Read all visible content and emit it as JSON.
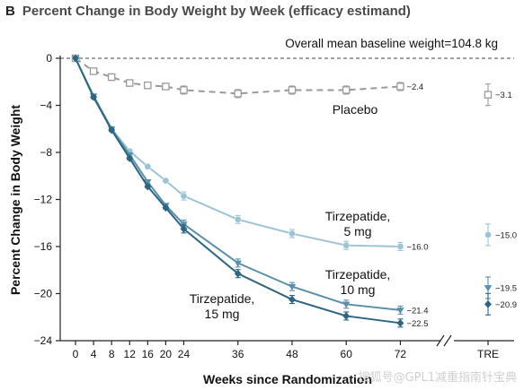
{
  "panel": {
    "letter": "B",
    "title": "Percent Change in Body Weight by Week (efficacy estimand)"
  },
  "watermark": "搜狐号@GPL1减重指南针宝典",
  "chart_data": {
    "type": "line",
    "title": "Percent Change in Body Weight by Week (efficacy estimand)",
    "xlabel": "Weeks since Randomization",
    "ylabel": "Percent Change in Body Weight",
    "ylim": [
      -24,
      0
    ],
    "yticks": [
      0,
      -4,
      -8,
      -12,
      -16,
      -20,
      -24
    ],
    "xticks": [
      0,
      4,
      8,
      12,
      16,
      20,
      24,
      36,
      48,
      60,
      72
    ],
    "extra_xtick": "TRE",
    "x": [
      0,
      4,
      8,
      12,
      16,
      20,
      24,
      36,
      48,
      60,
      72
    ],
    "grid": false,
    "annotation": "Overall mean baseline weight=104.8 kg",
    "series": [
      {
        "name": "Placebo",
        "label_lines": [
          "Placebo"
        ],
        "color": "#9a9a9a",
        "dashed": true,
        "marker": "square-open",
        "values": [
          0,
          -1.1,
          -1.6,
          -2.1,
          -2.3,
          -2.4,
          -2.7,
          -3.0,
          -2.7,
          -2.7,
          -2.4
        ],
        "end_label": "−2.4",
        "tre": -3.1,
        "tre_label": "−3.1"
      },
      {
        "name": "Tirzepatide, 5 mg",
        "label_lines": [
          "Tirzepatide,",
          "5 mg"
        ],
        "color": "#9cc3d5",
        "dashed": false,
        "marker": "circle",
        "values": [
          0,
          -3.3,
          -6.0,
          -7.9,
          -9.2,
          -10.4,
          -11.7,
          -13.7,
          -14.9,
          -15.9,
          -16.0
        ],
        "end_label": "−16.0",
        "tre": -15.0,
        "tre_label": "−15.0"
      },
      {
        "name": "Tirzepatide, 10 mg",
        "label_lines": [
          "Tirzepatide,",
          "10 mg"
        ],
        "color": "#5b8faa",
        "dashed": false,
        "marker": "triangle-down",
        "values": [
          0,
          -3.2,
          -6.0,
          -8.2,
          -10.5,
          -12.5,
          -14.1,
          -17.4,
          -19.4,
          -20.9,
          -21.4
        ],
        "end_label": "−21.4",
        "tre": -19.5,
        "tre_label": "−19.5"
      },
      {
        "name": "Tirzepatide, 15 mg",
        "label_lines": [
          "Tirzepatide,",
          "15 mg"
        ],
        "color": "#2e6580",
        "dashed": false,
        "marker": "diamond",
        "values": [
          0,
          -3.3,
          -6.1,
          -8.5,
          -10.9,
          -12.7,
          -14.5,
          -18.3,
          -20.5,
          -21.9,
          -22.5
        ],
        "end_label": "−22.5",
        "tre": -20.9,
        "tre_label": "−20.9"
      }
    ]
  }
}
